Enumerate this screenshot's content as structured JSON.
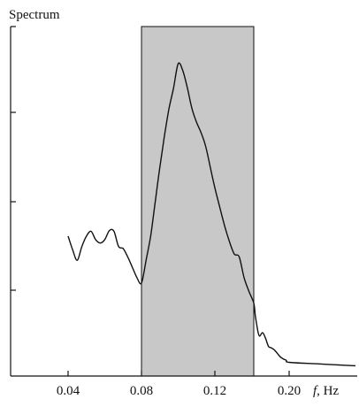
{
  "chart_data": {
    "type": "line",
    "title": "",
    "ylabel": "Spectrum",
    "xlabel_italic": "f",
    "xlabel_unit": ", Hz",
    "x_tick_labels": [
      "0.04",
      "0.08",
      "0.12",
      "0.20"
    ],
    "y_ticks": 4,
    "shaded_band": {
      "x_from": 0.08,
      "x_to": 0.14,
      "color": "#c8c8c8"
    },
    "grid": false,
    "legend": "none",
    "series": [
      {
        "x": [
          0.04,
          0.0425,
          0.045,
          0.0475,
          0.05,
          0.0525,
          0.055,
          0.0575,
          0.06,
          0.0625,
          0.065,
          0.0675,
          0.07,
          0.0725,
          0.075,
          0.0775,
          0.08,
          0.0825,
          0.085,
          0.0875,
          0.09,
          0.0925,
          0.095,
          0.0975,
          0.1,
          0.1025,
          0.105,
          0.1075,
          0.11,
          0.1125,
          0.115,
          0.1175,
          0.12,
          0.1225,
          0.125,
          0.1275,
          0.13,
          0.1325,
          0.135,
          0.1375,
          0.14,
          0.1425,
          0.145,
          0.1475,
          0.15,
          0.155,
          0.16,
          0.165,
          0.17,
          0.175,
          0.18,
          0.185,
          0.19,
          0.195,
          0.2,
          0.205,
          0.21,
          0.2125
        ],
        "y": [
          1.9,
          1.7,
          1.55,
          1.75,
          1.9,
          1.97,
          1.85,
          1.8,
          1.85,
          1.98,
          1.97,
          1.75,
          1.72,
          1.6,
          1.45,
          1.3,
          1.22,
          1.55,
          1.9,
          2.4,
          2.9,
          3.35,
          3.75,
          4.05,
          4.4,
          4.3,
          4.05,
          3.75,
          3.55,
          3.4,
          3.2,
          2.9,
          2.6,
          2.32,
          2.05,
          1.82,
          1.64,
          1.6,
          1.3,
          1.1,
          0.93,
          0.75,
          0.62,
          0.5,
          0.45,
          0.5,
          0.42,
          0.3,
          0.28,
          0.25,
          0.2,
          0.15,
          0.12,
          0.1,
          0.07,
          0.05,
          0.03,
          0.02
        ]
      }
    ]
  }
}
